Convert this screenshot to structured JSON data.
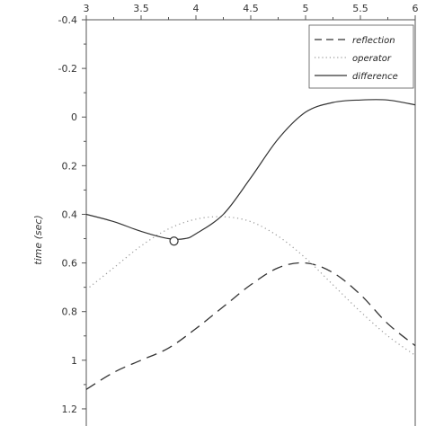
{
  "chart_data": {
    "type": "line",
    "xlabel": "",
    "ylabel": "time (sec)",
    "xlim": [
      3,
      6
    ],
    "ylim": [
      -0.4,
      1.3
    ],
    "y_inverted": true,
    "x_axis_position": "top",
    "xticks": [
      "3",
      "3.5",
      "4",
      "4.5",
      "5",
      "5.5",
      "6"
    ],
    "xtick_values": [
      3,
      3.5,
      4,
      4.5,
      5,
      5.5,
      6
    ],
    "yticks": [
      "-0.4",
      "-0.2",
      "0",
      "0.2",
      "0.4",
      "0.6",
      "0.8",
      "1",
      "1.2"
    ],
    "ytick_values": [
      -0.4,
      -0.2,
      0,
      0.2,
      0.4,
      0.6,
      0.8,
      1,
      1.2
    ],
    "grid": false,
    "legend_position": "top-right",
    "series": [
      {
        "name": "reflection",
        "style": "dashed",
        "color": "#333333",
        "x": [
          3.0,
          3.25,
          3.5,
          3.75,
          4.0,
          4.25,
          4.5,
          4.75,
          5.0,
          5.25,
          5.5,
          5.75,
          6.0
        ],
        "y": [
          1.12,
          1.05,
          1.0,
          0.95,
          0.87,
          0.78,
          0.69,
          0.62,
          0.6,
          0.64,
          0.73,
          0.85,
          0.94
        ]
      },
      {
        "name": "operator",
        "style": "dotted",
        "color": "#999999",
        "x": [
          3.0,
          3.25,
          3.5,
          3.75,
          4.0,
          4.25,
          4.5,
          4.75,
          5.0,
          5.25,
          5.5,
          5.75,
          6.0
        ],
        "y": [
          0.71,
          0.62,
          0.53,
          0.46,
          0.42,
          0.41,
          0.43,
          0.49,
          0.58,
          0.69,
          0.8,
          0.9,
          0.98
        ]
      },
      {
        "name": "difference",
        "style": "solid",
        "color": "#333333",
        "x": [
          3.0,
          3.25,
          3.5,
          3.75,
          3.9,
          4.0,
          4.25,
          4.5,
          4.75,
          5.0,
          5.25,
          5.5,
          5.75,
          6.0
        ],
        "y": [
          0.4,
          0.43,
          0.47,
          0.5,
          0.5,
          0.48,
          0.4,
          0.25,
          0.09,
          -0.02,
          -0.06,
          -0.07,
          -0.07,
          -0.05
        ]
      }
    ],
    "marker": {
      "x": 3.8,
      "y": 0.51,
      "shape": "open-circle"
    }
  }
}
